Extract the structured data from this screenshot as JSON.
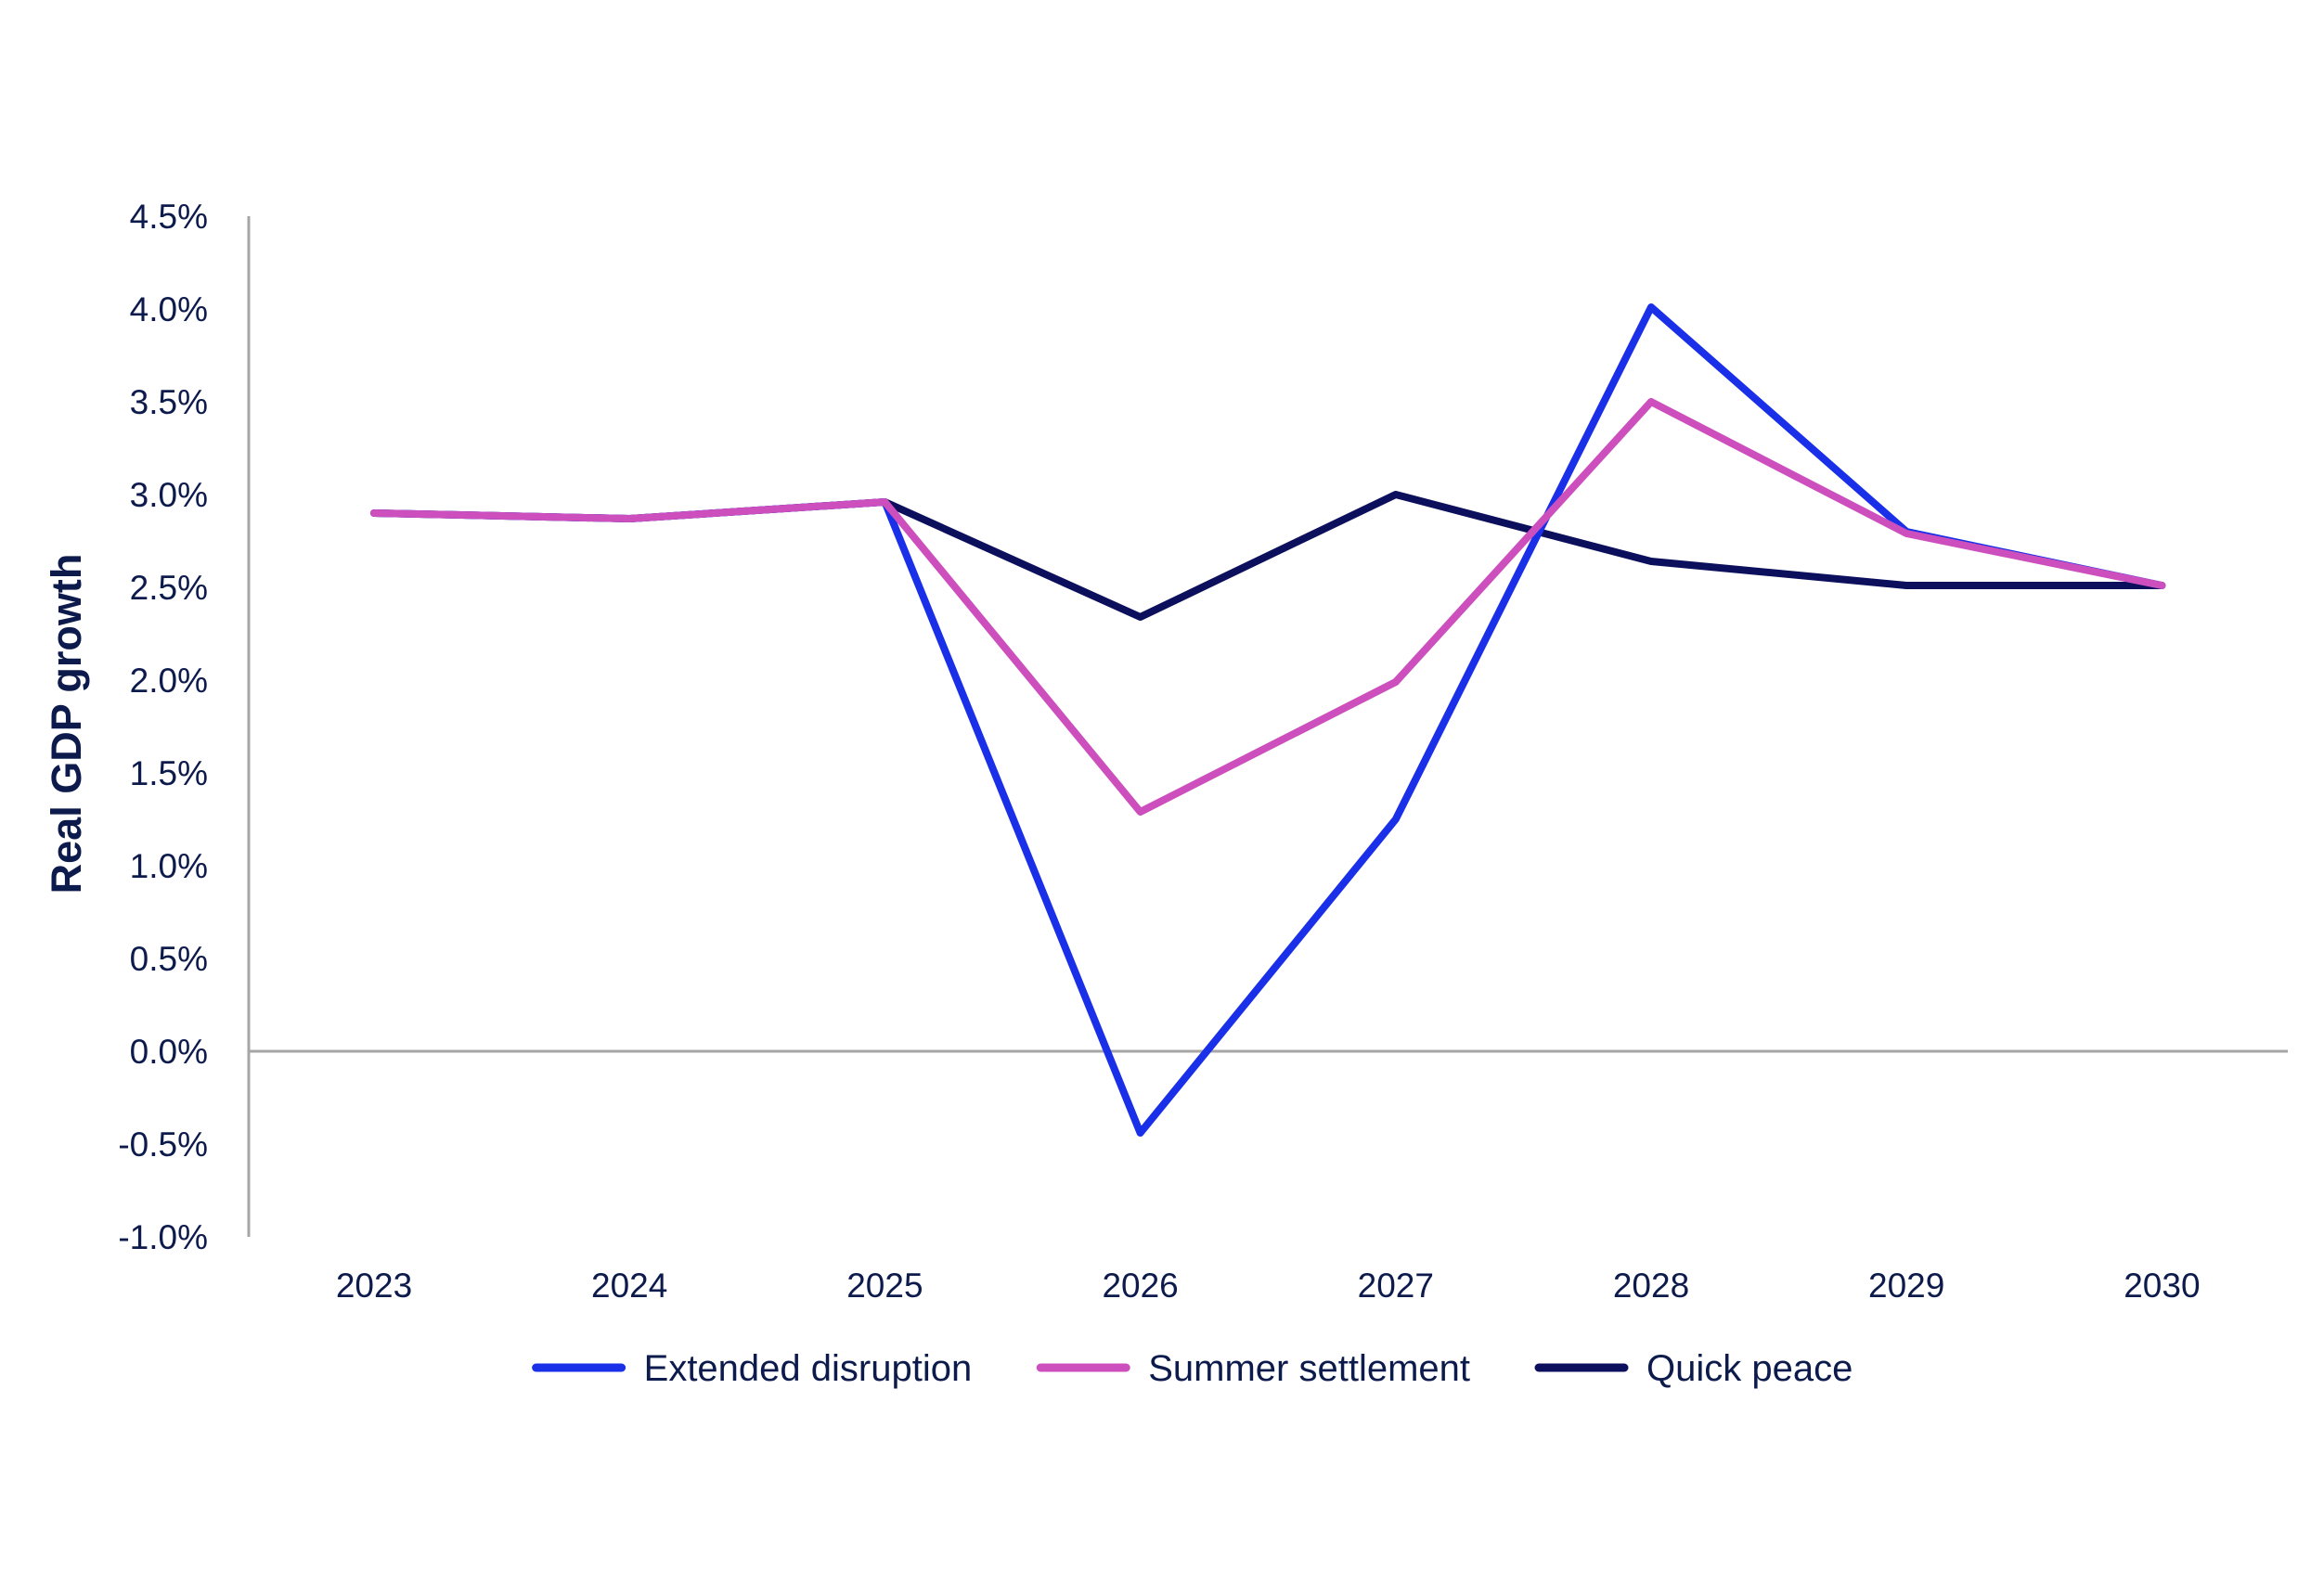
{
  "chart_data": {
    "type": "line",
    "title": "",
    "xlabel": "",
    "ylabel": "Real GDP growth",
    "categories": [
      "2023",
      "2024",
      "2025",
      "2026",
      "2027",
      "2028",
      "2029",
      "2030"
    ],
    "ylim": [
      -1.0,
      4.5
    ],
    "ytick_step": 0.5,
    "y_format": "percent_1dp",
    "grid": false,
    "legend_position": "bottom",
    "series": [
      {
        "name": "Extended disruption",
        "color": "#1a2fe8",
        "values": [
          2.9,
          2.87,
          2.96,
          -0.44,
          1.25,
          4.01,
          2.8,
          2.51
        ]
      },
      {
        "name": "Summer settlement",
        "color": "#cc4fbd",
        "values": [
          2.9,
          2.87,
          2.96,
          1.29,
          1.99,
          3.5,
          2.79,
          2.51
        ]
      },
      {
        "name": "Quick peace",
        "color": "#0b0f5c",
        "values": [
          2.9,
          2.87,
          2.96,
          2.34,
          3.0,
          2.64,
          2.51,
          2.51
        ]
      }
    ],
    "draw_order": [
      2,
      0,
      1
    ]
  }
}
